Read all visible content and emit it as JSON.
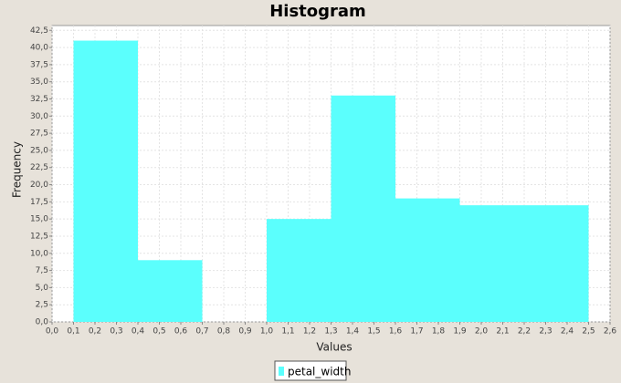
{
  "chart_data": {
    "type": "histogram",
    "title": "Histogram",
    "x_label": "Values",
    "y_label": "Frequency",
    "bins": [
      0.1,
      0.4,
      0.7,
      1.0,
      1.3,
      1.6,
      1.9,
      2.2,
      2.5
    ],
    "series": [
      {
        "name": "petal_width",
        "color": "#5bfffd",
        "values": [
          41,
          9,
          0,
          15,
          33,
          18,
          17,
          17
        ]
      }
    ],
    "xlim": [
      0,
      2.6
    ],
    "ylim": [
      0,
      43.2
    ],
    "xticks": [
      {
        "value": 0,
        "label": "0,0"
      },
      {
        "value": 0.1,
        "label": "0,1"
      },
      {
        "value": 0.2,
        "label": "0,2"
      },
      {
        "value": 0.3,
        "label": "0,3"
      },
      {
        "value": 0.4,
        "label": "0,4"
      },
      {
        "value": 0.5,
        "label": "0,5"
      },
      {
        "value": 0.6,
        "label": "0,6"
      },
      {
        "value": 0.7,
        "label": "0,7"
      },
      {
        "value": 0.8,
        "label": "0,8"
      },
      {
        "value": 0.9,
        "label": "0,9"
      },
      {
        "value": 1.0,
        "label": "1,0"
      },
      {
        "value": 1.1,
        "label": "1,1"
      },
      {
        "value": 1.2,
        "label": "1,2"
      },
      {
        "value": 1.3,
        "label": "1,3"
      },
      {
        "value": 1.4,
        "label": "1,4"
      },
      {
        "value": 1.5,
        "label": "1,5"
      },
      {
        "value": 1.6,
        "label": "1,6"
      },
      {
        "value": 1.7,
        "label": "1,7"
      },
      {
        "value": 1.8,
        "label": "1,8"
      },
      {
        "value": 1.9,
        "label": "1,9"
      },
      {
        "value": 2.0,
        "label": "2,0"
      },
      {
        "value": 2.1,
        "label": "2,1"
      },
      {
        "value": 2.2,
        "label": "2,2"
      },
      {
        "value": 2.3,
        "label": "2,3"
      },
      {
        "value": 2.4,
        "label": "2,4"
      },
      {
        "value": 2.5,
        "label": "2,5"
      },
      {
        "value": 2.6,
        "label": "2,6"
      }
    ],
    "yticks": [
      {
        "value": 0,
        "label": "0,0"
      },
      {
        "value": 2.5,
        "label": "2,5"
      },
      {
        "value": 5,
        "label": "5,0"
      },
      {
        "value": 7.5,
        "label": "7,5"
      },
      {
        "value": 10,
        "label": "10,0"
      },
      {
        "value": 12.5,
        "label": "12,5"
      },
      {
        "value": 15,
        "label": "15,0"
      },
      {
        "value": 17.5,
        "label": "17,5"
      },
      {
        "value": 20,
        "label": "20,0"
      },
      {
        "value": 22.5,
        "label": "22,5"
      },
      {
        "value": 25,
        "label": "25,0"
      },
      {
        "value": 27.5,
        "label": "27,5"
      },
      {
        "value": 30,
        "label": "30,0"
      },
      {
        "value": 32.5,
        "label": "32,5"
      },
      {
        "value": 35,
        "label": "35,0"
      },
      {
        "value": 37.5,
        "label": "37,5"
      },
      {
        "value": 40,
        "label": "40,0"
      },
      {
        "value": 42.5,
        "label": "42,5"
      }
    ],
    "grid": true
  }
}
